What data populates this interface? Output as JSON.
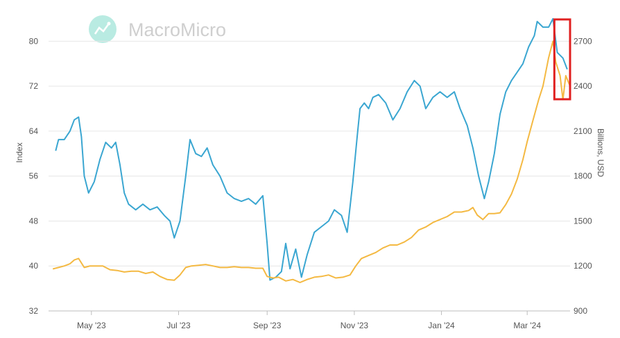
{
  "watermark": {
    "text": "MacroMicro"
  },
  "chart_data": {
    "type": "line",
    "xlabel": "",
    "ylabel": "Index",
    "y2label": "Billions, USD",
    "x_ticks": [
      "May '23",
      "Jul '23",
      "Sep '23",
      "Nov '23",
      "Jan '24",
      "Mar '24"
    ],
    "x_tick_dates": [
      "2023-05-01",
      "2023-07-01",
      "2023-09-01",
      "2023-11-01",
      "2024-01-01",
      "2024-03-01"
    ],
    "xlim": [
      "2023-04-01",
      "2024-03-31"
    ],
    "ylim": [
      32,
      84
    ],
    "y_ticks": [
      32,
      40,
      48,
      56,
      64,
      72,
      80
    ],
    "y2lim": [
      900,
      2850
    ],
    "y2_ticks": [
      900,
      1200,
      1500,
      1800,
      2100,
      2400,
      2700
    ],
    "grid": true,
    "legend": "none",
    "series": [
      {
        "axis": "left",
        "color": "#3aa6d1",
        "points": [
          [
            "2023-04-06",
            60.5
          ],
          [
            "2023-04-08",
            62.5
          ],
          [
            "2023-04-12",
            62.5
          ],
          [
            "2023-04-16",
            64
          ],
          [
            "2023-04-19",
            66
          ],
          [
            "2023-04-22",
            66.5
          ],
          [
            "2023-04-24",
            63
          ],
          [
            "2023-04-26",
            56
          ],
          [
            "2023-04-29",
            53
          ],
          [
            "2023-05-03",
            55
          ],
          [
            "2023-05-07",
            59
          ],
          [
            "2023-05-11",
            62
          ],
          [
            "2023-05-15",
            61
          ],
          [
            "2023-05-18",
            62
          ],
          [
            "2023-05-21",
            58
          ],
          [
            "2023-05-24",
            53
          ],
          [
            "2023-05-27",
            51
          ],
          [
            "2023-06-01",
            50
          ],
          [
            "2023-06-06",
            51
          ],
          [
            "2023-06-11",
            50
          ],
          [
            "2023-06-16",
            50.5
          ],
          [
            "2023-06-21",
            49
          ],
          [
            "2023-06-25",
            48
          ],
          [
            "2023-06-28",
            45
          ],
          [
            "2023-07-02",
            48
          ],
          [
            "2023-07-06",
            56
          ],
          [
            "2023-07-09",
            62.5
          ],
          [
            "2023-07-13",
            60
          ],
          [
            "2023-07-17",
            59.5
          ],
          [
            "2023-07-21",
            61
          ],
          [
            "2023-07-25",
            58
          ],
          [
            "2023-07-30",
            56
          ],
          [
            "2023-08-04",
            53
          ],
          [
            "2023-08-09",
            52
          ],
          [
            "2023-08-14",
            51.5
          ],
          [
            "2023-08-19",
            52
          ],
          [
            "2023-08-24",
            51
          ],
          [
            "2023-08-29",
            52.5
          ],
          [
            "2023-09-01",
            44
          ],
          [
            "2023-09-03",
            37.5
          ],
          [
            "2023-09-07",
            38
          ],
          [
            "2023-09-11",
            39
          ],
          [
            "2023-09-14",
            44
          ],
          [
            "2023-09-17",
            39.5
          ],
          [
            "2023-09-21",
            43
          ],
          [
            "2023-09-25",
            38
          ],
          [
            "2023-09-29",
            42
          ],
          [
            "2023-10-04",
            46
          ],
          [
            "2023-10-09",
            47
          ],
          [
            "2023-10-14",
            48
          ],
          [
            "2023-10-18",
            50
          ],
          [
            "2023-10-23",
            49
          ],
          [
            "2023-10-27",
            46
          ],
          [
            "2023-10-31",
            55
          ],
          [
            "2023-11-03",
            63
          ],
          [
            "2023-11-05",
            68
          ],
          [
            "2023-11-08",
            69
          ],
          [
            "2023-11-11",
            68
          ],
          [
            "2023-11-14",
            70
          ],
          [
            "2023-11-18",
            70.5
          ],
          [
            "2023-11-23",
            69
          ],
          [
            "2023-11-28",
            66
          ],
          [
            "2023-12-03",
            68
          ],
          [
            "2023-12-08",
            71
          ],
          [
            "2023-12-13",
            73
          ],
          [
            "2023-12-17",
            72
          ],
          [
            "2023-12-21",
            68
          ],
          [
            "2023-12-26",
            70
          ],
          [
            "2023-12-31",
            71
          ],
          [
            "2024-01-05",
            70
          ],
          [
            "2024-01-10",
            71
          ],
          [
            "2024-01-14",
            68
          ],
          [
            "2024-01-19",
            65
          ],
          [
            "2024-01-23",
            61
          ],
          [
            "2024-01-27",
            56
          ],
          [
            "2024-01-31",
            52
          ],
          [
            "2024-02-03",
            55
          ],
          [
            "2024-02-07",
            60
          ],
          [
            "2024-02-11",
            67
          ],
          [
            "2024-02-15",
            71
          ],
          [
            "2024-02-19",
            73
          ],
          [
            "2024-02-23",
            74.5
          ],
          [
            "2024-02-27",
            76
          ],
          [
            "2024-03-02",
            79
          ],
          [
            "2024-03-06",
            81
          ],
          [
            "2024-03-08",
            83.5
          ],
          [
            "2024-03-12",
            82.5
          ],
          [
            "2024-03-16",
            82.5
          ],
          [
            "2024-03-19",
            84
          ],
          [
            "2024-03-22",
            78
          ],
          [
            "2024-03-26",
            77
          ],
          [
            "2024-03-29",
            75
          ]
        ]
      },
      {
        "axis": "right",
        "color": "#f4b942",
        "points": [
          [
            "2023-04-04",
            1180
          ],
          [
            "2023-04-08",
            1190
          ],
          [
            "2023-04-12",
            1200
          ],
          [
            "2023-04-16",
            1215
          ],
          [
            "2023-04-19",
            1240
          ],
          [
            "2023-04-22",
            1250
          ],
          [
            "2023-04-26",
            1190
          ],
          [
            "2023-04-30",
            1200
          ],
          [
            "2023-05-04",
            1200
          ],
          [
            "2023-05-09",
            1200
          ],
          [
            "2023-05-14",
            1175
          ],
          [
            "2023-05-19",
            1170
          ],
          [
            "2023-05-24",
            1160
          ],
          [
            "2023-05-29",
            1165
          ],
          [
            "2023-06-03",
            1165
          ],
          [
            "2023-06-08",
            1150
          ],
          [
            "2023-06-13",
            1160
          ],
          [
            "2023-06-18",
            1130
          ],
          [
            "2023-06-23",
            1110
          ],
          [
            "2023-06-28",
            1105
          ],
          [
            "2023-07-02",
            1140
          ],
          [
            "2023-07-06",
            1190
          ],
          [
            "2023-07-10",
            1200
          ],
          [
            "2023-07-15",
            1205
          ],
          [
            "2023-07-20",
            1210
          ],
          [
            "2023-07-25",
            1200
          ],
          [
            "2023-07-30",
            1190
          ],
          [
            "2023-08-04",
            1190
          ],
          [
            "2023-08-09",
            1195
          ],
          [
            "2023-08-14",
            1190
          ],
          [
            "2023-08-19",
            1190
          ],
          [
            "2023-08-24",
            1185
          ],
          [
            "2023-08-29",
            1185
          ],
          [
            "2023-09-01",
            1130
          ],
          [
            "2023-09-05",
            1120
          ],
          [
            "2023-09-09",
            1125
          ],
          [
            "2023-09-14",
            1100
          ],
          [
            "2023-09-19",
            1110
          ],
          [
            "2023-09-24",
            1090
          ],
          [
            "2023-09-29",
            1110
          ],
          [
            "2023-10-04",
            1125
          ],
          [
            "2023-10-09",
            1130
          ],
          [
            "2023-10-14",
            1140
          ],
          [
            "2023-10-19",
            1120
          ],
          [
            "2023-10-24",
            1125
          ],
          [
            "2023-10-29",
            1140
          ],
          [
            "2023-11-02",
            1200
          ],
          [
            "2023-11-06",
            1250
          ],
          [
            "2023-11-11",
            1270
          ],
          [
            "2023-11-16",
            1290
          ],
          [
            "2023-11-21",
            1320
          ],
          [
            "2023-11-26",
            1340
          ],
          [
            "2023-12-01",
            1340
          ],
          [
            "2023-12-06",
            1360
          ],
          [
            "2023-12-11",
            1390
          ],
          [
            "2023-12-16",
            1440
          ],
          [
            "2023-12-21",
            1460
          ],
          [
            "2023-12-26",
            1490
          ],
          [
            "2023-12-31",
            1510
          ],
          [
            "2024-01-05",
            1530
          ],
          [
            "2024-01-10",
            1560
          ],
          [
            "2024-01-15",
            1560
          ],
          [
            "2024-01-20",
            1570
          ],
          [
            "2024-01-23",
            1590
          ],
          [
            "2024-01-26",
            1540
          ],
          [
            "2024-01-30",
            1510
          ],
          [
            "2024-02-03",
            1550
          ],
          [
            "2024-02-07",
            1550
          ],
          [
            "2024-02-11",
            1555
          ],
          [
            "2024-02-15",
            1610
          ],
          [
            "2024-02-19",
            1680
          ],
          [
            "2024-02-23",
            1780
          ],
          [
            "2024-02-27",
            1910
          ],
          [
            "2024-03-01",
            2030
          ],
          [
            "2024-03-05",
            2170
          ],
          [
            "2024-03-09",
            2310
          ],
          [
            "2024-03-12",
            2400
          ],
          [
            "2024-03-16",
            2590
          ],
          [
            "2024-03-19",
            2700
          ],
          [
            "2024-03-21",
            2560
          ],
          [
            "2024-03-24",
            2470
          ],
          [
            "2024-03-26",
            2310
          ],
          [
            "2024-03-28",
            2470
          ],
          [
            "2024-03-31",
            2400
          ]
        ]
      }
    ],
    "annotations": [
      {
        "type": "highlight-box",
        "color": "#e02020",
        "x_range": [
          "2024-03-20",
          "2024-04-05"
        ]
      }
    ]
  }
}
